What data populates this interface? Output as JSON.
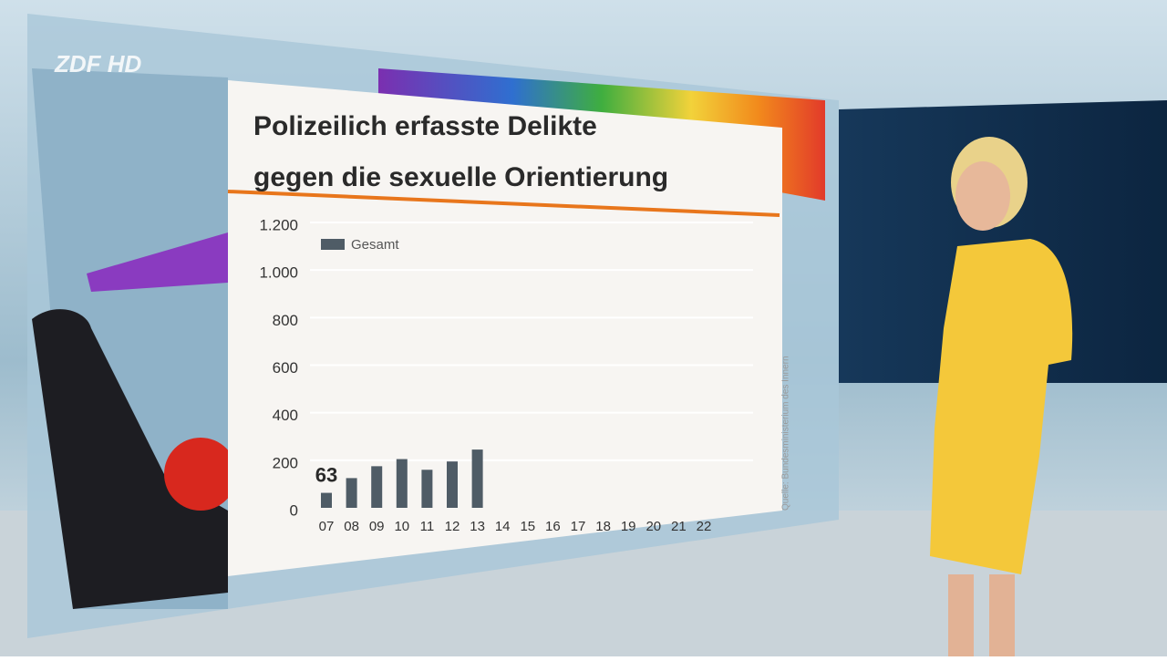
{
  "logo": "ZDF HD",
  "source": "Quelle: Bundesministerium des Innern",
  "chart_data": {
    "type": "bar",
    "title_lines": [
      "Polizeilich erfasste Delikte",
      "gegen die sexuelle Orientierung"
    ],
    "categories": [
      "07",
      "08",
      "09",
      "10",
      "11",
      "12",
      "13",
      "14",
      "15",
      "16",
      "17",
      "18",
      "19",
      "20",
      "21",
      "22"
    ],
    "series": [
      {
        "name": "Gesamt",
        "color": "#4f5c66",
        "values": [
          63,
          125,
          175,
          205,
          160,
          195,
          245,
          null,
          null,
          null,
          null,
          null,
          null,
          null,
          null,
          null
        ]
      }
    ],
    "ylim": [
      0,
      1200
    ],
    "yticks": [
      0,
      200,
      400,
      600,
      800,
      {
        "value": 1000,
        "label": "1.000"
      },
      {
        "value": 1200,
        "label": "1.200"
      }
    ],
    "grid": true,
    "highlight_label_index": 0
  }
}
